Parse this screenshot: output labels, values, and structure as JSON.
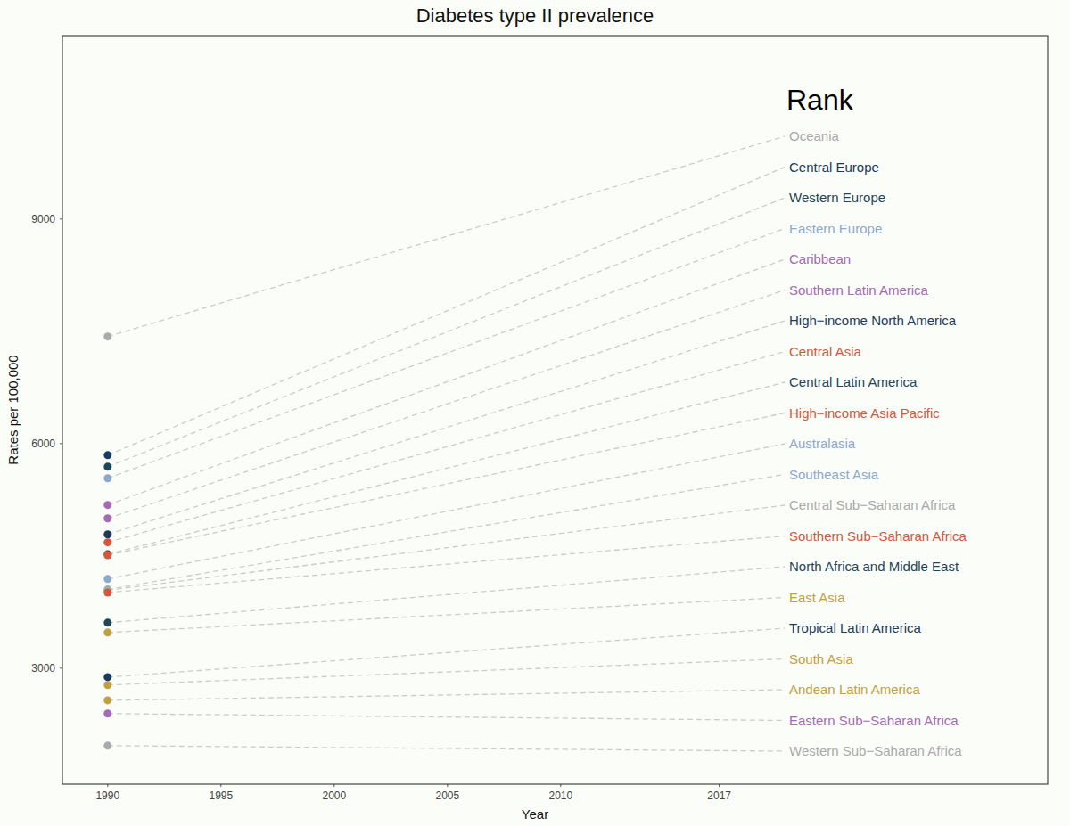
{
  "chart_data": {
    "type": "scatter",
    "title": "Diabetes type II prevalence",
    "x_label": "Year",
    "y_label": "Rates per 100,000",
    "annotation": "Rank",
    "x": [
      1990
    ],
    "xlim": [
      1988,
      2031.5
    ],
    "xticks": [
      1990,
      1995,
      2000,
      2005,
      2010,
      2017
    ],
    "ylim": [
      1450,
      11450
    ],
    "yticks": [
      3000,
      6000,
      9000
    ],
    "grid": false,
    "marker": "circle",
    "series": [
      {
        "name": "Oceania",
        "color": "#aaaaaa",
        "values": [
          7430
        ]
      },
      {
        "name": "Central Europe",
        "color": "#1b3a5c",
        "values": [
          5845
        ]
      },
      {
        "name": "Western Europe",
        "color": "#1f4656",
        "values": [
          5690
        ]
      },
      {
        "name": "Eastern Europe",
        "color": "#8ea8cc",
        "values": [
          5536
        ]
      },
      {
        "name": "Caribbean",
        "color": "#a56ab5",
        "values": [
          5180
        ]
      },
      {
        "name": "Southern Latin America",
        "color": "#a56ab5",
        "values": [
          5000
        ]
      },
      {
        "name": "High−income North America",
        "color": "#1b3a5c",
        "values": [
          4786
        ]
      },
      {
        "name": "Central Asia",
        "color": "#d4573b",
        "values": [
          4680
        ]
      },
      {
        "name": "Central Latin America",
        "color": "#1f4656",
        "values": [
          4520
        ]
      },
      {
        "name": "High−income Asia Pacific",
        "color": "#d4573b",
        "values": [
          4510
        ]
      },
      {
        "name": "Australasia",
        "color": "#8ea8cc",
        "values": [
          4190
        ]
      },
      {
        "name": "Southeast Asia",
        "color": "#8ea8cc",
        "values": [
          4050
        ]
      },
      {
        "name": "Central Sub−Saharan Africa",
        "color": "#aaaaaa",
        "values": [
          4040
        ]
      },
      {
        "name": "Southern Sub−Saharan Africa",
        "color": "#d4573b",
        "values": [
          4010
        ]
      },
      {
        "name": "North Africa and Middle East",
        "color": "#1f4656",
        "values": [
          3607
        ]
      },
      {
        "name": "East Asia",
        "color": "#c0a040",
        "values": [
          3476
        ]
      },
      {
        "name": "Tropical Latin America",
        "color": "#1b3a5c",
        "values": [
          2880
        ]
      },
      {
        "name": "South Asia",
        "color": "#c0a040",
        "values": [
          2775
        ]
      },
      {
        "name": "Andean Latin America",
        "color": "#c0a040",
        "values": [
          2570
        ]
      },
      {
        "name": "Eastern Sub−Saharan Africa",
        "color": "#a56ab5",
        "values": [
          2393
        ]
      },
      {
        "name": "Western Sub−Saharan Africa",
        "color": "#aaaaaa",
        "values": [
          1964
        ]
      }
    ]
  }
}
